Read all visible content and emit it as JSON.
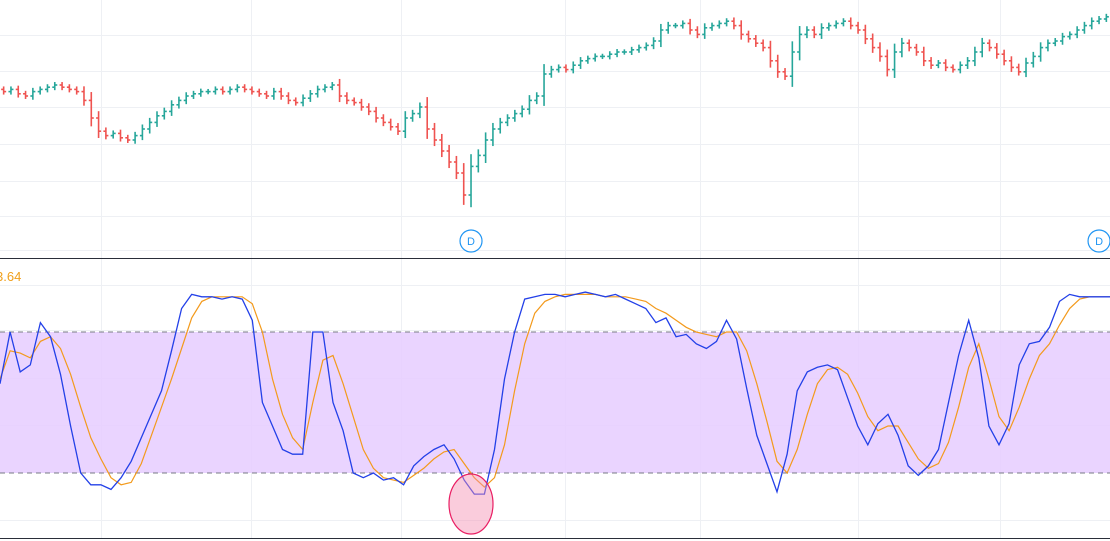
{
  "indicator": {
    "value_label": "3.64"
  },
  "colors": {
    "up": "#26a69a",
    "down": "#ef5350",
    "k_line": "#2340e8",
    "d_line": "#f39a1c",
    "band": "#e6ccff",
    "highlight": "#f48fb1"
  },
  "dividend_markers": [
    {
      "label": "D",
      "bar_index": 64
    },
    {
      "label": "D",
      "bar_index": 150
    }
  ],
  "chart_data": [
    {
      "type": "ohlc",
      "grid": true,
      "ylim": [
        0,
        100
      ],
      "close": [
        62,
        63,
        61,
        60,
        62,
        63,
        64,
        65,
        64,
        63,
        62,
        58,
        50,
        44,
        42,
        43,
        41,
        40,
        42,
        45,
        48,
        51,
        53,
        56,
        58,
        60,
        61,
        62,
        62,
        63,
        62,
        63,
        64,
        63,
        62,
        61,
        60,
        62,
        60,
        58,
        57,
        59,
        61,
        63,
        64,
        65,
        60,
        58,
        57,
        55,
        53,
        50,
        48,
        46,
        44,
        50,
        52,
        55,
        45,
        40,
        35,
        30,
        25,
        15,
        28,
        33,
        40,
        45,
        48,
        50,
        52,
        54,
        58,
        60,
        70,
        72,
        73,
        72,
        74,
        76,
        77,
        78,
        78,
        79,
        80,
        80,
        81,
        82,
        83,
        85,
        90,
        92,
        92,
        93,
        90,
        88,
        91,
        92,
        93,
        94,
        92,
        88,
        86,
        84,
        82,
        76,
        71,
        69,
        80,
        88,
        90,
        88,
        91,
        92,
        93,
        94,
        92,
        90,
        86,
        82,
        78,
        72,
        80,
        84,
        82,
        80,
        76,
        74,
        75,
        73,
        72,
        74,
        76,
        80,
        84,
        82,
        79,
        76,
        73,
        71,
        75,
        78,
        82,
        84,
        85,
        87,
        88,
        90,
        92,
        94,
        95,
        96
      ]
    },
    {
      "type": "line",
      "ylim": [
        0,
        100
      ],
      "bands": [
        20,
        80
      ],
      "series": [
        {
          "values": [
            58,
            80,
            63,
            66,
            84,
            78,
            62,
            40,
            20,
            15,
            15,
            13,
            18,
            25,
            35,
            45,
            55,
            72,
            90,
            96,
            95,
            95,
            94,
            95,
            94,
            85,
            50,
            40,
            30,
            28,
            28,
            80,
            80,
            50,
            38,
            20,
            18,
            20,
            17,
            18,
            15,
            23,
            27,
            30,
            32,
            26,
            17,
            11,
            11,
            30,
            60,
            80,
            94,
            95,
            96,
            96,
            95,
            96,
            97,
            96,
            95,
            96,
            94,
            92,
            90,
            84,
            86,
            78,
            79,
            75,
            73,
            76,
            85,
            77,
            56,
            36,
            24,
            12,
            28,
            55,
            63,
            65,
            66,
            64,
            52,
            40,
            32,
            41,
            45,
            36,
            23,
            19,
            23,
            30,
            50,
            70,
            85,
            69,
            40,
            32,
            41,
            66,
            75,
            76,
            82,
            93,
            96,
            95,
            95,
            95,
            95
          ]
        },
        {
          "values": [
            60,
            72,
            71,
            69,
            76,
            78,
            73,
            62,
            48,
            35,
            26,
            18,
            15,
            16,
            24,
            36,
            48,
            60,
            73,
            86,
            93,
            95,
            95,
            95,
            95,
            92,
            80,
            60,
            45,
            35,
            30,
            50,
            68,
            70,
            58,
            44,
            30,
            22,
            18,
            17,
            16,
            19,
            22,
            26,
            29,
            30,
            24,
            18,
            14,
            18,
            32,
            55,
            75,
            88,
            93,
            95,
            96,
            96,
            96,
            96,
            95,
            95,
            95,
            94,
            93,
            90,
            88,
            85,
            82,
            80,
            79,
            78,
            80,
            80,
            72,
            58,
            42,
            25,
            20,
            30,
            45,
            58,
            64,
            65,
            62,
            54,
            44,
            38,
            40,
            40,
            33,
            26,
            22,
            24,
            33,
            48,
            65,
            75,
            60,
            44,
            38,
            48,
            60,
            70,
            75,
            83,
            90,
            94,
            95,
            95,
            95
          ]
        }
      ]
    }
  ]
}
